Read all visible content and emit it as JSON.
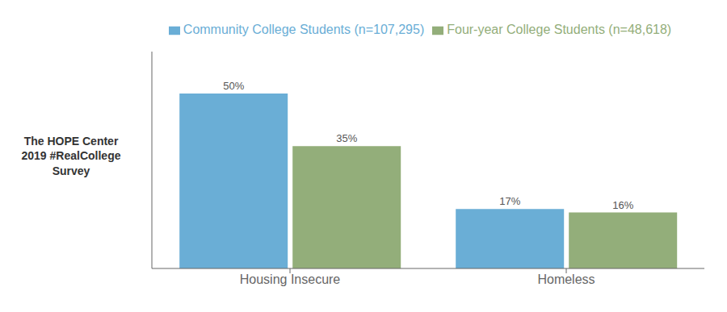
{
  "chart_data": {
    "type": "bar",
    "categories": [
      "Housing Insecure",
      "Homeless"
    ],
    "series": [
      {
        "name": "Community College Students (n=107,295)",
        "color": "#6aaed6",
        "values": [
          50,
          17
        ],
        "value_labels": [
          "50%",
          "17%"
        ]
      },
      {
        "name": "Four-year College Students (n=48,618)",
        "color": "#93ae7a",
        "values": [
          35,
          16
        ],
        "value_labels": [
          "35%",
          "16%"
        ]
      }
    ],
    "ylabel": "The HOPE Center\n2019 #RealCollege\nSurvey",
    "ylim": [
      0,
      62
    ],
    "grid": false,
    "legend": "top",
    "data_labels": true,
    "tick_labels": "x"
  }
}
